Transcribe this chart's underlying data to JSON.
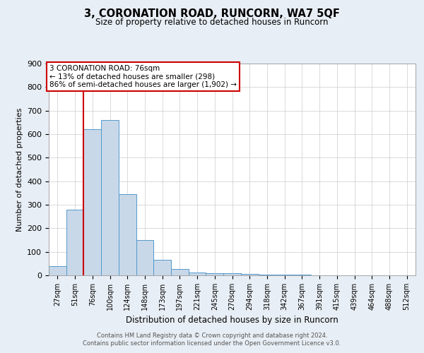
{
  "title1": "3, CORONATION ROAD, RUNCORN, WA7 5QF",
  "title2": "Size of property relative to detached houses in Runcorn",
  "xlabel": "Distribution of detached houses by size in Runcorn",
  "ylabel": "Number of detached properties",
  "bins": [
    "27sqm",
    "51sqm",
    "76sqm",
    "100sqm",
    "124sqm",
    "148sqm",
    "173sqm",
    "197sqm",
    "221sqm",
    "245sqm",
    "270sqm",
    "294sqm",
    "318sqm",
    "342sqm",
    "367sqm",
    "391sqm",
    "415sqm",
    "439sqm",
    "464sqm",
    "488sqm",
    "512sqm"
  ],
  "values": [
    40,
    280,
    620,
    660,
    345,
    150,
    65,
    28,
    12,
    10,
    8,
    5,
    3,
    2,
    2,
    1,
    1,
    1,
    0,
    0,
    0
  ],
  "bar_color": "#c8d8e8",
  "bar_edge_color": "#5599cc",
  "vline_color": "#cc0000",
  "vline_index": 2,
  "annotation_line1": "3 CORONATION ROAD: 76sqm",
  "annotation_line2": "← 13% of detached houses are smaller (298)",
  "annotation_line3": "86% of semi-detached houses are larger (1,902) →",
  "annotation_box_facecolor": "#ffffff",
  "annotation_box_edgecolor": "#cc0000",
  "ylim": [
    0,
    900
  ],
  "yticks": [
    0,
    100,
    200,
    300,
    400,
    500,
    600,
    700,
    800,
    900
  ],
  "bg_color": "#e8eef5",
  "plot_bg_color": "#ffffff",
  "footer1": "Contains HM Land Registry data © Crown copyright and database right 2024.",
  "footer2": "Contains public sector information licensed under the Open Government Licence v3.0."
}
